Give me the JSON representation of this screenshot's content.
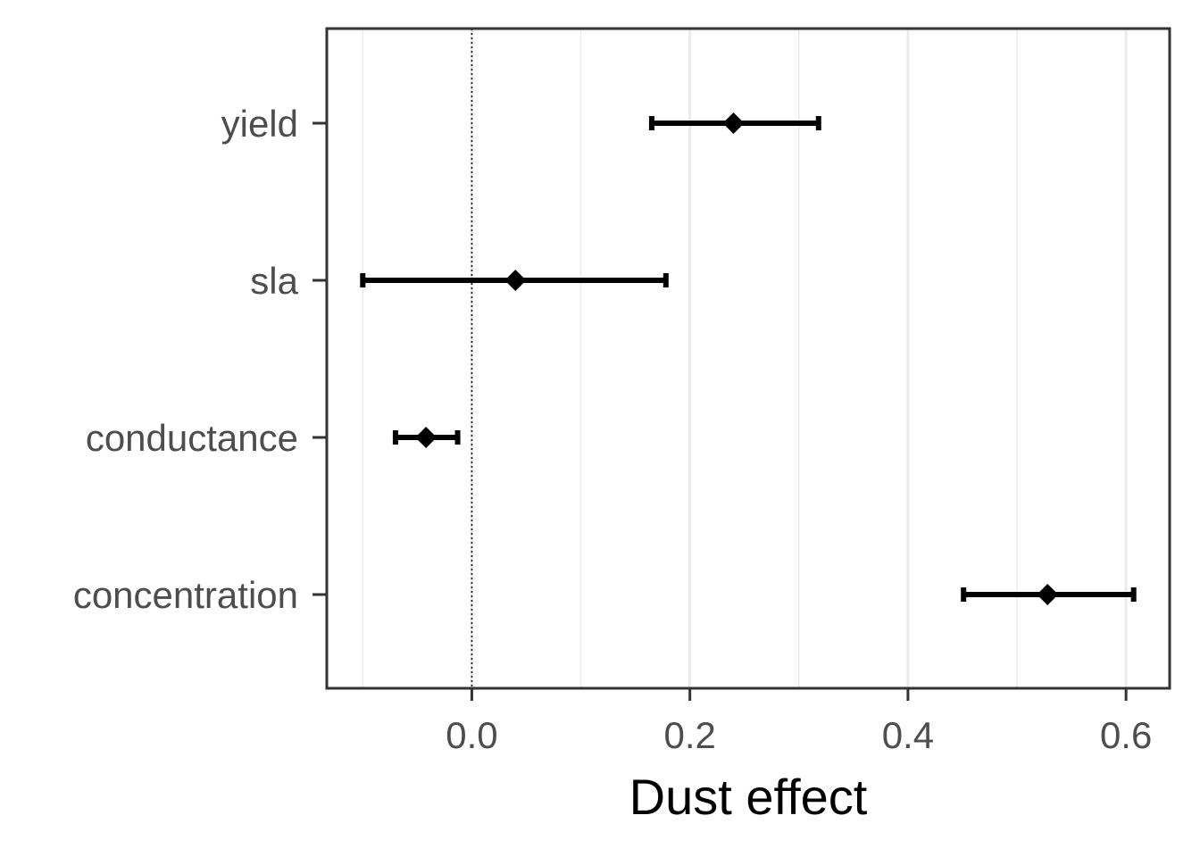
{
  "chart_data": {
    "type": "forest",
    "title": "",
    "xlabel": "Dust effect",
    "ylabel": "",
    "xlim": [
      -0.133,
      0.64
    ],
    "xticks": [
      0.0,
      0.2,
      0.4,
      0.6
    ],
    "xtick_labels": [
      "0.0",
      "0.2",
      "0.4",
      "0.6"
    ],
    "minor_gridlines": [
      -0.1,
      0.1,
      0.3,
      0.5
    ],
    "reference_line": 0.0,
    "grid": "vertical",
    "categories": [
      "yield",
      "sla",
      "conductance",
      "concentration"
    ],
    "estimates": [
      {
        "label": "yield",
        "value": 0.24,
        "lower": 0.165,
        "upper": 0.318
      },
      {
        "label": "sla",
        "value": 0.04,
        "lower": -0.1,
        "upper": 0.178
      },
      {
        "label": "conductance",
        "value": -0.042,
        "lower": -0.07,
        "upper": -0.013
      },
      {
        "label": "concentration",
        "value": 0.528,
        "lower": 0.451,
        "upper": 0.607
      }
    ]
  },
  "colors": {
    "point": "#000000",
    "error_bar": "#000000",
    "panel_border": "#333333",
    "grid": "#ebebeb",
    "tick_text": "#4d4d4d",
    "title_text": "#000000"
  },
  "marker_shape": "diamond"
}
